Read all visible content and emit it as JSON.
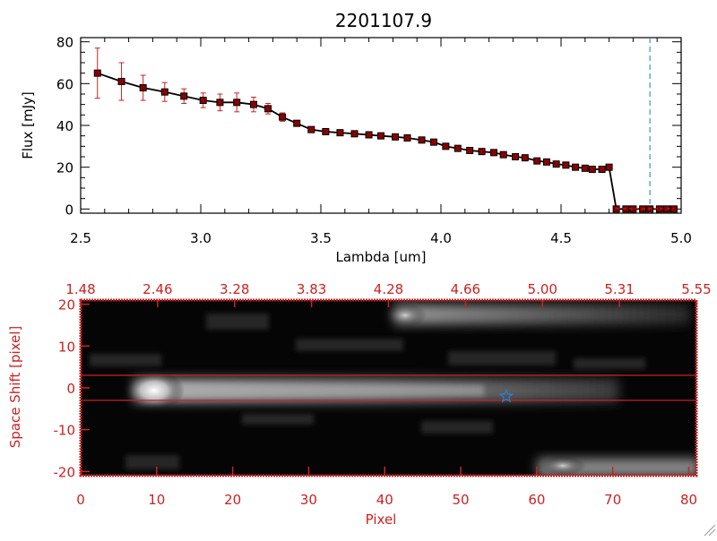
{
  "chart_data": [
    {
      "type": "line",
      "title": "2201107.9",
      "xlabel": "Lambda [um]",
      "ylabel": "Flux [mJy]",
      "xlim": [
        2.5,
        5.0
      ],
      "ylim": [
        -2,
        82
      ],
      "xticks": [
        "2.5",
        "3.0",
        "3.5",
        "4.0",
        "4.5",
        "5.0"
      ],
      "yticks": [
        "0",
        "20",
        "40",
        "60",
        "80"
      ],
      "marker_vline": 4.87,
      "series": [
        {
          "name": "flux",
          "x": [
            2.57,
            2.67,
            2.76,
            2.85,
            2.93,
            3.01,
            3.08,
            3.15,
            3.22,
            3.28,
            3.34,
            3.4,
            3.46,
            3.52,
            3.58,
            3.64,
            3.7,
            3.75,
            3.81,
            3.86,
            3.92,
            3.97,
            4.02,
            4.07,
            4.12,
            4.17,
            4.22,
            4.26,
            4.31,
            4.35,
            4.4,
            4.44,
            4.48,
            4.52,
            4.56,
            4.6,
            4.63,
            4.67,
            4.7,
            4.73,
            4.77,
            4.8,
            4.84,
            4.87,
            4.91,
            4.94,
            4.97
          ],
          "y": [
            65,
            61,
            58,
            56,
            54,
            52,
            51,
            51,
            50,
            48,
            44,
            41,
            38,
            37,
            36.5,
            36,
            35.5,
            35,
            34.5,
            34,
            33,
            32,
            30,
            29,
            28,
            27.5,
            27,
            26,
            25,
            24.5,
            23,
            22.5,
            21.5,
            21,
            20,
            19.5,
            19,
            19,
            20,
            0,
            0,
            0,
            0,
            0,
            0,
            0,
            0
          ],
          "yerr": [
            12,
            9,
            6,
            4.5,
            3.5,
            3.5,
            4,
            4.5,
            3.5,
            2.5,
            2,
            1,
            1,
            1,
            1,
            1,
            1,
            1,
            1,
            1,
            1,
            1,
            1,
            1,
            1,
            1,
            1,
            1,
            1,
            1,
            1,
            1,
            1,
            1,
            1,
            1,
            1,
            1,
            1,
            0.5,
            0.5,
            0.5,
            0.5,
            0.5,
            0.5,
            0.5,
            0.5
          ]
        }
      ]
    },
    {
      "type": "heatmap",
      "xlabel": "Pixel",
      "ylabel": "Space Shift [pixel]",
      "xlim": [
        0,
        81
      ],
      "ylim": [
        -21,
        21
      ],
      "xticks": [
        "0",
        "10",
        "20",
        "30",
        "40",
        "50",
        "60",
        "70",
        "80"
      ],
      "yticks": [
        "-20",
        "-10",
        "0",
        "10",
        "20"
      ],
      "top_axis_ticks": [
        "1.48",
        "2.46",
        "3.28",
        "3.83",
        "4.28",
        "4.66",
        "5.00",
        "5.31",
        "5.55"
      ],
      "extraction_lines": [
        3,
        -3
      ],
      "target_marker": {
        "pixel": 56,
        "shift": -2
      }
    }
  ],
  "colors": {
    "frame_top": "#000000",
    "frame_bottom": "#cc2222",
    "marker": "#8b0000",
    "errorbar": "#cc2222",
    "vline": "#3a9bb5",
    "star": "#2b7fd6"
  }
}
